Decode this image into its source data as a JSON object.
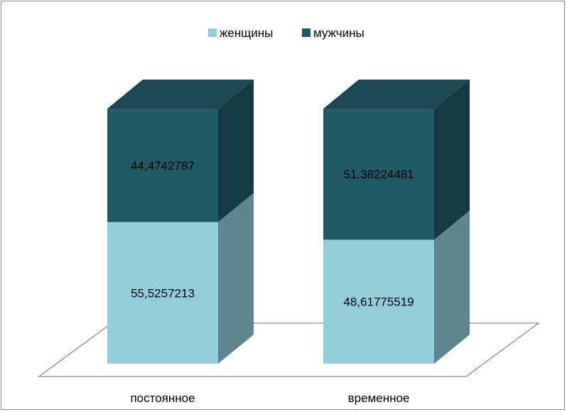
{
  "chart_data": {
    "type": "bar",
    "stacked": true,
    "percent_stacked": true,
    "three_d": true,
    "title": "",
    "xlabel": "",
    "ylabel": "",
    "ylim": [
      0,
      100
    ],
    "grid": false,
    "legend_position": "top",
    "categories": [
      "постоянное",
      "временное"
    ],
    "series": [
      {
        "name": "женщины",
        "values": [
          55.5257213,
          48.61775519
        ],
        "labels": [
          "55,5257213",
          "48,61775519"
        ],
        "color": "#92cddc"
      },
      {
        "name": "мужчины",
        "values": [
          44.4742787,
          51.38224481
        ],
        "labels": [
          "44,4742787",
          "51,38224481"
        ],
        "color": "#215967"
      }
    ]
  }
}
